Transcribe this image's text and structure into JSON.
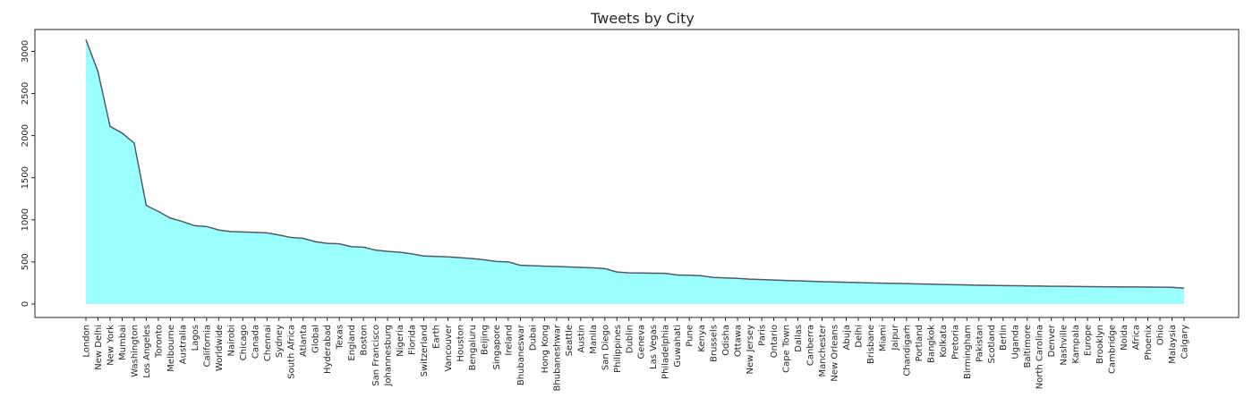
{
  "chart_data": {
    "type": "area",
    "title": "Tweets by City",
    "xlabel": "",
    "ylabel": "",
    "ylim": [
      -160,
      3260
    ],
    "yticks": [
      0,
      500,
      1000,
      1500,
      2000,
      2500,
      3000
    ],
    "grid": false,
    "colors": {
      "fill": "#99ffff",
      "line": "#4f5a66",
      "axis": "#262626"
    },
    "categories": [
      "London",
      "New Delhi",
      "New York",
      "Mumbai",
      "Washington",
      "Los Angeles",
      "Toronto",
      "Melbourne",
      "Australia",
      "Lagos",
      "California",
      "Worldwide",
      "Nairobi",
      "Chicago",
      "Canada",
      "Chennai",
      "Sydney",
      "South Africa",
      "Atlanta",
      "Global",
      "Hyderabad",
      "Texas",
      "England",
      "Boston",
      "San Francisco",
      "Johannesburg",
      "Nigeria",
      "Florida",
      "Switzerland",
      "Earth",
      "Vancouver",
      "Houston",
      "Bengaluru",
      "Beijing",
      "Singapore",
      "Ireland",
      "Bhubaneswar",
      "Dubai",
      "Hong Kong",
      "Bhubaneshwar",
      "Seattle",
      "Austin",
      "Manila",
      "San Diego",
      "Philippines",
      "Dublin",
      "Geneva",
      "Las Vegas",
      "Philadelphia",
      "Guwahati",
      "Pune",
      "Kenya",
      "Brussels",
      "Odisha",
      "Ottawa",
      "New Jersey",
      "Paris",
      "Ontario",
      "Cape Town",
      "Dallas",
      "Canberra",
      "Manchester",
      "New Orleans",
      "Abuja",
      "Delhi",
      "Brisbane",
      "Miami",
      "Jaipur",
      "Chandigarh",
      "Portland",
      "Bangkok",
      "Kolkata",
      "Pretoria",
      "Birmingham",
      "Pakistan",
      "Scotland",
      "Berlin",
      "Uganda",
      "Baltimore",
      "North Carolina",
      "Denver",
      "Nashville",
      "Kampala",
      "Europe",
      "Brooklyn",
      "Cambridge",
      "Noida",
      "Africa",
      "Phoenix",
      "Ohio",
      "Malaysia",
      "Calgary"
    ],
    "values": [
      3140,
      2760,
      2110,
      2030,
      1910,
      1170,
      1100,
      1020,
      980,
      930,
      920,
      880,
      860,
      855,
      850,
      845,
      820,
      790,
      780,
      740,
      720,
      715,
      680,
      675,
      640,
      625,
      615,
      595,
      570,
      565,
      560,
      550,
      540,
      525,
      505,
      500,
      460,
      455,
      450,
      445,
      440,
      435,
      430,
      420,
      380,
      370,
      368,
      366,
      365,
      345,
      342,
      335,
      315,
      310,
      305,
      295,
      290,
      285,
      280,
      275,
      270,
      265,
      262,
      258,
      254,
      250,
      247,
      245,
      242,
      238,
      235,
      232,
      229,
      226,
      223,
      221,
      219,
      217,
      215,
      213,
      211,
      210,
      208,
      206,
      205,
      204,
      203,
      202,
      201,
      200,
      198,
      188
    ]
  }
}
